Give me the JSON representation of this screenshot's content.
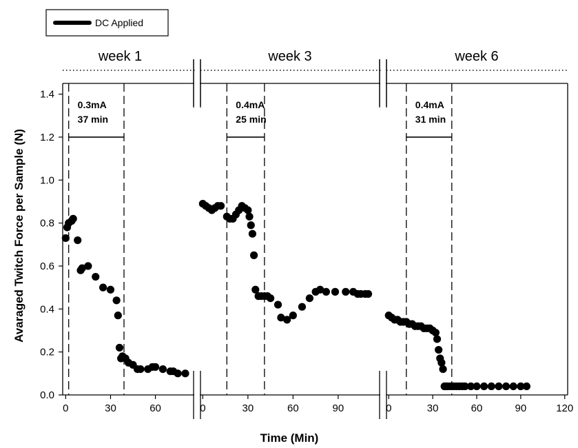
{
  "chart_data": {
    "type": "scatter",
    "ylabel": "Avaraged Twitch Force per Sample (N)",
    "xlabel": "Time (Min)",
    "ylim": [
      0,
      1.45
    ],
    "yticks": [
      "0.0",
      "0.2",
      "0.4",
      "0.6",
      "0.8",
      "1.0",
      "1.2",
      "1.4"
    ],
    "x_tick_labels": [
      "0",
      "30",
      "60",
      "0",
      "30",
      "60",
      "90",
      "0",
      "30",
      "60",
      "90",
      "120"
    ],
    "legend": {
      "label": "DC  Applied",
      "position": "top-left"
    },
    "panels": [
      {
        "name": "week 1",
        "xlim": [
          -2,
          86
        ],
        "ticks": [
          "0",
          "30",
          "60"
        ],
        "stim_interval": [
          2,
          39
        ],
        "bar_level": 1.2,
        "annotation": [
          "0.3mA",
          "37 min"
        ],
        "x": [
          0,
          1,
          2,
          4,
          5,
          8,
          10,
          11,
          15,
          20,
          25,
          30,
          34,
          35,
          36,
          37,
          38,
          40,
          42,
          45,
          48,
          50,
          55,
          58,
          60,
          65,
          70,
          72,
          75,
          80
        ],
        "y": [
          0.73,
          0.78,
          0.8,
          0.81,
          0.82,
          0.72,
          0.58,
          0.59,
          0.6,
          0.55,
          0.5,
          0.49,
          0.44,
          0.37,
          0.22,
          0.17,
          0.18,
          0.17,
          0.15,
          0.14,
          0.12,
          0.12,
          0.12,
          0.13,
          0.13,
          0.12,
          0.11,
          0.11,
          0.1,
          0.1
        ]
      },
      {
        "name": "week 3",
        "xlim": [
          -2,
          118
        ],
        "ticks": [
          "0",
          "30",
          "60",
          "90"
        ],
        "stim_interval": [
          16,
          41
        ],
        "bar_level": 1.2,
        "annotation": [
          "0.4mA",
          "25 min"
        ],
        "x": [
          0,
          2,
          4,
          6,
          8,
          10,
          12,
          16,
          18,
          20,
          22,
          24,
          26,
          28,
          30,
          31,
          32,
          33,
          34,
          35,
          37,
          39,
          41,
          43,
          45,
          50,
          52,
          56,
          60,
          66,
          71,
          75,
          78,
          82,
          88,
          95,
          100,
          103,
          105,
          108,
          110
        ],
        "y": [
          0.89,
          0.88,
          0.87,
          0.86,
          0.87,
          0.88,
          0.88,
          0.83,
          0.82,
          0.82,
          0.84,
          0.86,
          0.88,
          0.87,
          0.86,
          0.83,
          0.79,
          0.75,
          0.65,
          0.49,
          0.46,
          0.46,
          0.46,
          0.46,
          0.45,
          0.42,
          0.36,
          0.35,
          0.37,
          0.41,
          0.45,
          0.48,
          0.49,
          0.48,
          0.48,
          0.48,
          0.48,
          0.47,
          0.47,
          0.47,
          0.47
        ]
      },
      {
        "name": "week 6",
        "xlim": [
          -2,
          122
        ],
        "ticks": [
          "0",
          "30",
          "60",
          "90",
          "120"
        ],
        "stim_interval": [
          12,
          43
        ],
        "bar_level": 1.2,
        "annotation": [
          "0.4mA",
          "31 min"
        ],
        "x": [
          0,
          2,
          4,
          6,
          8,
          10,
          12,
          14,
          16,
          18,
          20,
          22,
          24,
          26,
          28,
          30,
          32,
          33,
          34,
          35,
          36,
          37,
          38,
          39,
          40,
          42,
          44,
          46,
          48,
          50,
          52,
          56,
          60,
          65,
          70,
          75,
          80,
          85,
          90,
          94
        ],
        "y": [
          0.37,
          0.36,
          0.35,
          0.35,
          0.34,
          0.34,
          0.34,
          0.33,
          0.33,
          0.32,
          0.32,
          0.32,
          0.31,
          0.31,
          0.31,
          0.3,
          0.29,
          0.26,
          0.21,
          0.17,
          0.15,
          0.12,
          0.04,
          0.04,
          0.04,
          0.04,
          0.04,
          0.04,
          0.04,
          0.04,
          0.04,
          0.04,
          0.04,
          0.04,
          0.04,
          0.04,
          0.04,
          0.04,
          0.04,
          0.04
        ]
      }
    ]
  }
}
